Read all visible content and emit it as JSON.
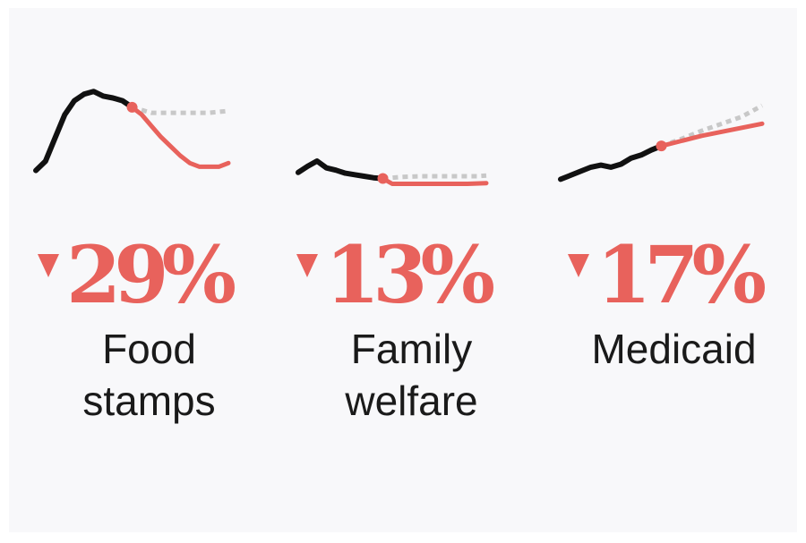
{
  "colors": {
    "actual": "#111111",
    "cut": "#e8625c",
    "baseline": "#c8c8c8",
    "background": "#f8f8fa"
  },
  "chart_data": [
    {
      "type": "line",
      "program": [
        "Food",
        "stamps"
      ],
      "change": "29%",
      "direction": "down",
      "series": [
        {
          "values": [
            [
              0,
              10
            ],
            [
              1,
              20
            ],
            [
              2,
              45
            ],
            [
              3,
              70
            ],
            [
              4,
              85
            ],
            [
              5,
              92
            ],
            [
              6,
              95
            ],
            [
              7,
              90
            ],
            [
              8,
              88
            ],
            [
              9,
              85
            ],
            [
              10,
              78
            ]
          ]
        },
        {
          "values": [
            [
              10,
              78
            ],
            [
              11,
              70
            ],
            [
              12,
              58
            ],
            [
              13,
              46
            ],
            [
              14,
              36
            ],
            [
              15,
              26
            ],
            [
              16,
              18
            ],
            [
              17,
              14
            ],
            [
              18,
              14
            ],
            [
              19,
              14
            ],
            [
              20,
              18
            ]
          ]
        },
        {
          "values": [
            [
              10,
              78
            ],
            [
              12,
              72
            ],
            [
              14,
              72
            ],
            [
              16,
              72
            ],
            [
              18,
              72
            ],
            [
              20,
              74
            ]
          ]
        }
      ],
      "ylim": [
        0,
        100
      ]
    },
    {
      "type": "line",
      "program": [
        "Family",
        "welfare"
      ],
      "change": "13%",
      "direction": "down",
      "series": [
        {
          "values": [
            [
              0,
              25
            ],
            [
              1,
              33
            ],
            [
              2,
              40
            ],
            [
              3,
              31
            ],
            [
              4,
              28
            ],
            [
              5,
              24
            ],
            [
              6,
              22
            ],
            [
              7,
              20
            ],
            [
              8,
              18
            ],
            [
              9,
              17
            ]
          ]
        },
        {
          "values": [
            [
              9,
              17
            ],
            [
              10,
              10
            ],
            [
              12,
              10
            ],
            [
              14,
              10
            ],
            [
              16,
              10
            ],
            [
              18,
              10
            ],
            [
              20,
              11
            ]
          ]
        },
        {
          "values": [
            [
              9,
              17
            ],
            [
              11,
              19
            ],
            [
              13,
              20
            ],
            [
              15,
              20
            ],
            [
              17,
              20
            ],
            [
              19,
              20
            ],
            [
              20,
              21
            ]
          ]
        }
      ],
      "ylim": [
        0,
        100
      ]
    },
    {
      "type": "line",
      "program": [
        "Medicaid"
      ],
      "change": "17%",
      "direction": "down",
      "series": [
        {
          "values": [
            [
              0,
              12
            ],
            [
              1,
              16
            ],
            [
              2,
              20
            ],
            [
              3,
              24
            ],
            [
              4,
              26
            ],
            [
              5,
              24
            ],
            [
              6,
              27
            ],
            [
              7,
              33
            ],
            [
              8,
              36
            ],
            [
              9,
              41
            ],
            [
              10,
              45
            ]
          ]
        },
        {
          "values": [
            [
              10,
              45
            ],
            [
              12,
              50
            ],
            [
              14,
              55
            ],
            [
              16,
              59
            ],
            [
              18,
              63
            ],
            [
              20,
              67
            ]
          ]
        },
        {
          "values": [
            [
              10,
              45
            ],
            [
              12,
              52
            ],
            [
              14,
              60
            ],
            [
              16,
              67
            ],
            [
              18,
              74
            ],
            [
              20,
              85
            ]
          ]
        }
      ],
      "ylim": [
        0,
        100
      ]
    }
  ]
}
